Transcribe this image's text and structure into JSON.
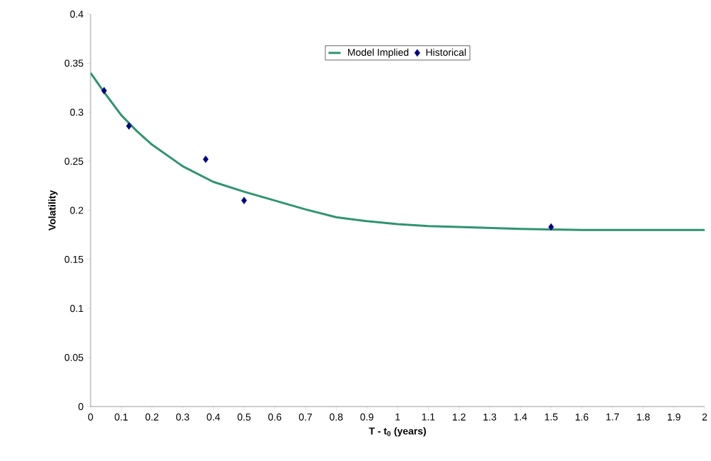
{
  "chart_data": {
    "type": "line",
    "xlabel": "T - t$_{0}$ (years)",
    "ylabel": "Volatility",
    "xlim": [
      0,
      2
    ],
    "ylim": [
      0,
      0.4
    ],
    "xticks": [
      0,
      0.1,
      0.2,
      0.3,
      0.4,
      0.5,
      0.6,
      0.7,
      0.8,
      0.9,
      1,
      1.1,
      1.2,
      1.3,
      1.4,
      1.5,
      1.6,
      1.7,
      1.8,
      1.9,
      2
    ],
    "yticks": [
      0,
      0.05,
      0.1,
      0.15,
      0.2,
      0.25,
      0.3,
      0.35,
      0.4
    ],
    "legend": "top",
    "series": [
      {
        "name": "Model Implied",
        "color": "#2e9470",
        "line_style": "solid",
        "x": [
          0,
          0.05,
          0.1,
          0.15,
          0.2,
          0.3,
          0.4,
          0.5,
          0.6,
          0.7,
          0.8,
          0.9,
          1,
          1.1,
          1.2,
          1.4,
          1.6,
          1.8,
          2
        ],
        "values": [
          0.34,
          0.318,
          0.297,
          0.281,
          0.267,
          0.245,
          0.229,
          0.219,
          0.21,
          0.201,
          0.193,
          0.189,
          0.186,
          0.184,
          0.183,
          0.181,
          0.18,
          0.18,
          0.18
        ]
      },
      {
        "name": "Historical",
        "type": "scatter",
        "color": "#000080",
        "marker": "diamond",
        "x": [
          0.044,
          0.125,
          0.375,
          0.5,
          1.5
        ],
        "values": [
          0.322,
          0.286,
          0.252,
          0.21,
          0.183
        ]
      }
    ]
  }
}
